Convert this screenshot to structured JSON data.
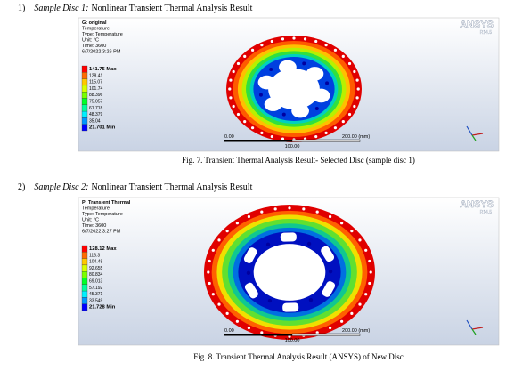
{
  "sections": [
    {
      "number": "1)",
      "label": "Sample Disc 1:",
      "text": "Nonlinear Transient Thermal Analysis Result",
      "figure": {
        "header": [
          "G: original",
          "Temperature",
          "Type: Temperature",
          "Unit: °C",
          "Time: 3600",
          "6/7/2022 3:26 PM"
        ],
        "legend": [
          "141.75 Max",
          "128.41",
          "115.07",
          "101.74",
          "88.396",
          "75.057",
          "61.718",
          "48.379",
          "35.04",
          "21.701 Min"
        ],
        "logo": "ANSYS",
        "version": "R14.5",
        "scale": {
          "start": "0.00",
          "end": "200.00 (mm)",
          "mid": "100.00"
        },
        "caption": "Fig. 7. Transient Thermal Analysis Result- Selected Disc (sample disc 1)"
      }
    },
    {
      "number": "2)",
      "label": "Sample Disc 2:",
      "text": "Nonlinear Transient Thermal Analysis Result",
      "figure": {
        "header": [
          "P: Transient Thermal",
          "Temperature",
          "Type: Temperature",
          "Unit: °C",
          "Time: 3600",
          "6/7/2022 3:27 PM"
        ],
        "legend": [
          "128.12 Max",
          "116.3",
          "104.48",
          "92.655",
          "80.834",
          "69.013",
          "57.192",
          "45.371",
          "33.549",
          "21.728 Min"
        ],
        "logo": "ANSYS",
        "version": "R14.5",
        "scale": {
          "start": "0.00",
          "end": "200.00 (mm)",
          "mid": "100.00"
        },
        "caption": "Fig. 8. Transient Thermal Analysis Result (ANSYS) of New Disc"
      }
    }
  ]
}
